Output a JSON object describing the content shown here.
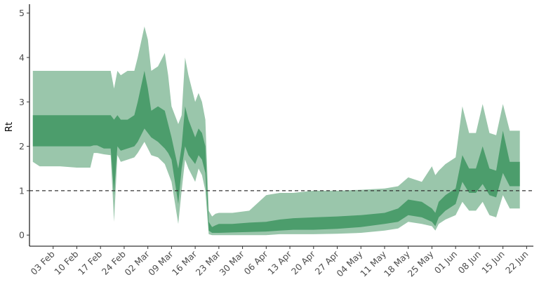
{
  "chart_data": {
    "type": "area",
    "title": "",
    "xlabel": "",
    "ylabel": "Rt",
    "ylim": [
      -0.25,
      5.2
    ],
    "yticks": [
      0,
      1,
      2,
      3,
      4,
      5
    ],
    "xlim": [
      "2020-01-27",
      "2020-06-24"
    ],
    "xticks": [
      "2020-02-03",
      "2020-02-10",
      "2020-02-17",
      "2020-02-24",
      "2020-03-02",
      "2020-03-09",
      "2020-03-16",
      "2020-03-23",
      "2020-03-30",
      "2020-04-06",
      "2020-04-13",
      "2020-04-20",
      "2020-04-27",
      "2020-05-04",
      "2020-05-11",
      "2020-05-18",
      "2020-05-25",
      "2020-06-01",
      "2020-06-08",
      "2020-06-15",
      "2020-06-22"
    ],
    "xtick_labels": [
      "03 Feb",
      "10 Feb",
      "17 Feb",
      "24 Feb",
      "02 Mar",
      "09 Mar",
      "16 Mar",
      "23 Mar",
      "30 Mar",
      "06 Apr",
      "13 Apr",
      "20 Apr",
      "27 Apr",
      "04 May",
      "11 May",
      "18 May",
      "25 May",
      "01 Jun",
      "08 Jun",
      "15 Jun",
      "22 Jun"
    ],
    "reference_line": {
      "y": 1,
      "style": "dashed"
    },
    "grid": false,
    "legend": "none",
    "colors": {
      "outer_band": "#9ac6ab",
      "inner_band": "#4c9d6c",
      "reference": "#333333",
      "axis": "#000000"
    },
    "series": [
      {
        "x": [
          "2020-01-28",
          "2020-01-30",
          "2020-02-05",
          "2020-02-10",
          "2020-02-14",
          "2020-02-15",
          "2020-02-16",
          "2020-02-18",
          "2020-02-20",
          "2020-02-21",
          "2020-02-22",
          "2020-02-23",
          "2020-02-25",
          "2020-02-27",
          "2020-02-28",
          "2020-03-01",
          "2020-03-02",
          "2020-03-03",
          "2020-03-05",
          "2020-03-07",
          "2020-03-08",
          "2020-03-09",
          "2020-03-11",
          "2020-03-12",
          "2020-03-13",
          "2020-03-14",
          "2020-03-16",
          "2020-03-17",
          "2020-03-18",
          "2020-03-19",
          "2020-03-20",
          "2020-03-21",
          "2020-03-22",
          "2020-03-23",
          "2020-03-27",
          "2020-04-01",
          "2020-04-06",
          "2020-04-10",
          "2020-04-14",
          "2020-04-20",
          "2020-04-27",
          "2020-05-04",
          "2020-05-11",
          "2020-05-15",
          "2020-05-18",
          "2020-05-22",
          "2020-05-25",
          "2020-05-26",
          "2020-05-27",
          "2020-05-29",
          "2020-06-01",
          "2020-06-03",
          "2020-06-05",
          "2020-06-07",
          "2020-06-09",
          "2020-06-11",
          "2020-06-13",
          "2020-06-15",
          "2020-06-17",
          "2020-06-20"
        ],
        "lower95": [
          1.65,
          1.55,
          1.55,
          1.52,
          1.52,
          1.85,
          1.85,
          1.82,
          1.8,
          0.3,
          1.8,
          1.65,
          1.7,
          1.75,
          1.85,
          2.1,
          1.95,
          1.8,
          1.75,
          1.6,
          1.4,
          1.2,
          0.25,
          1.0,
          1.7,
          1.5,
          1.2,
          1.5,
          1.35,
          1.0,
          0.02,
          0.0,
          0.0,
          0.0,
          0.0,
          0.0,
          0.0,
          0.02,
          0.02,
          0.02,
          0.03,
          0.05,
          0.1,
          0.15,
          0.3,
          0.25,
          0.2,
          0.1,
          0.25,
          0.35,
          0.45,
          0.75,
          0.55,
          0.55,
          0.75,
          0.45,
          0.4,
          0.9,
          0.6,
          0.6
        ],
        "lower50": [
          2.0,
          2.0,
          2.0,
          2.0,
          2.0,
          2.02,
          2.02,
          1.95,
          1.95,
          0.9,
          2.0,
          1.9,
          1.95,
          2.0,
          2.1,
          2.4,
          2.3,
          2.2,
          2.1,
          1.95,
          1.85,
          1.7,
          0.7,
          1.5,
          2.0,
          1.8,
          1.6,
          1.8,
          1.7,
          1.4,
          0.1,
          0.05,
          0.05,
          0.05,
          0.06,
          0.07,
          0.08,
          0.1,
          0.12,
          0.12,
          0.14,
          0.18,
          0.25,
          0.3,
          0.45,
          0.4,
          0.3,
          0.2,
          0.4,
          0.55,
          0.7,
          1.2,
          0.95,
          0.95,
          1.15,
          0.9,
          0.85,
          1.4,
          1.1,
          1.1
        ],
        "upper50": [
          2.7,
          2.7,
          2.7,
          2.7,
          2.7,
          2.7,
          2.7,
          2.7,
          2.7,
          2.6,
          2.7,
          2.6,
          2.6,
          2.7,
          3.0,
          3.7,
          3.3,
          2.8,
          2.9,
          2.8,
          2.5,
          2.2,
          1.5,
          2.0,
          2.9,
          2.6,
          2.2,
          2.4,
          2.3,
          2.0,
          0.3,
          0.18,
          0.22,
          0.25,
          0.25,
          0.28,
          0.3,
          0.35,
          0.38,
          0.4,
          0.42,
          0.45,
          0.5,
          0.6,
          0.8,
          0.75,
          0.6,
          0.5,
          0.75,
          0.9,
          1.05,
          1.8,
          1.5,
          1.5,
          2.0,
          1.5,
          1.45,
          2.35,
          1.65,
          1.65
        ],
        "upper95": [
          3.7,
          3.7,
          3.7,
          3.7,
          3.7,
          3.7,
          3.7,
          3.7,
          3.7,
          3.3,
          3.7,
          3.6,
          3.7,
          3.7,
          4.0,
          4.7,
          4.4,
          3.7,
          3.8,
          4.1,
          3.6,
          2.9,
          2.5,
          2.7,
          4.0,
          3.6,
          3.0,
          3.2,
          3.0,
          2.6,
          0.55,
          0.42,
          0.48,
          0.5,
          0.5,
          0.55,
          0.9,
          0.95,
          0.95,
          1.0,
          1.0,
          1.02,
          1.05,
          1.1,
          1.3,
          1.2,
          1.55,
          1.35,
          1.45,
          1.6,
          1.75,
          2.9,
          2.3,
          2.3,
          2.95,
          2.3,
          2.25,
          2.95,
          2.35,
          2.35
        ]
      }
    ]
  }
}
